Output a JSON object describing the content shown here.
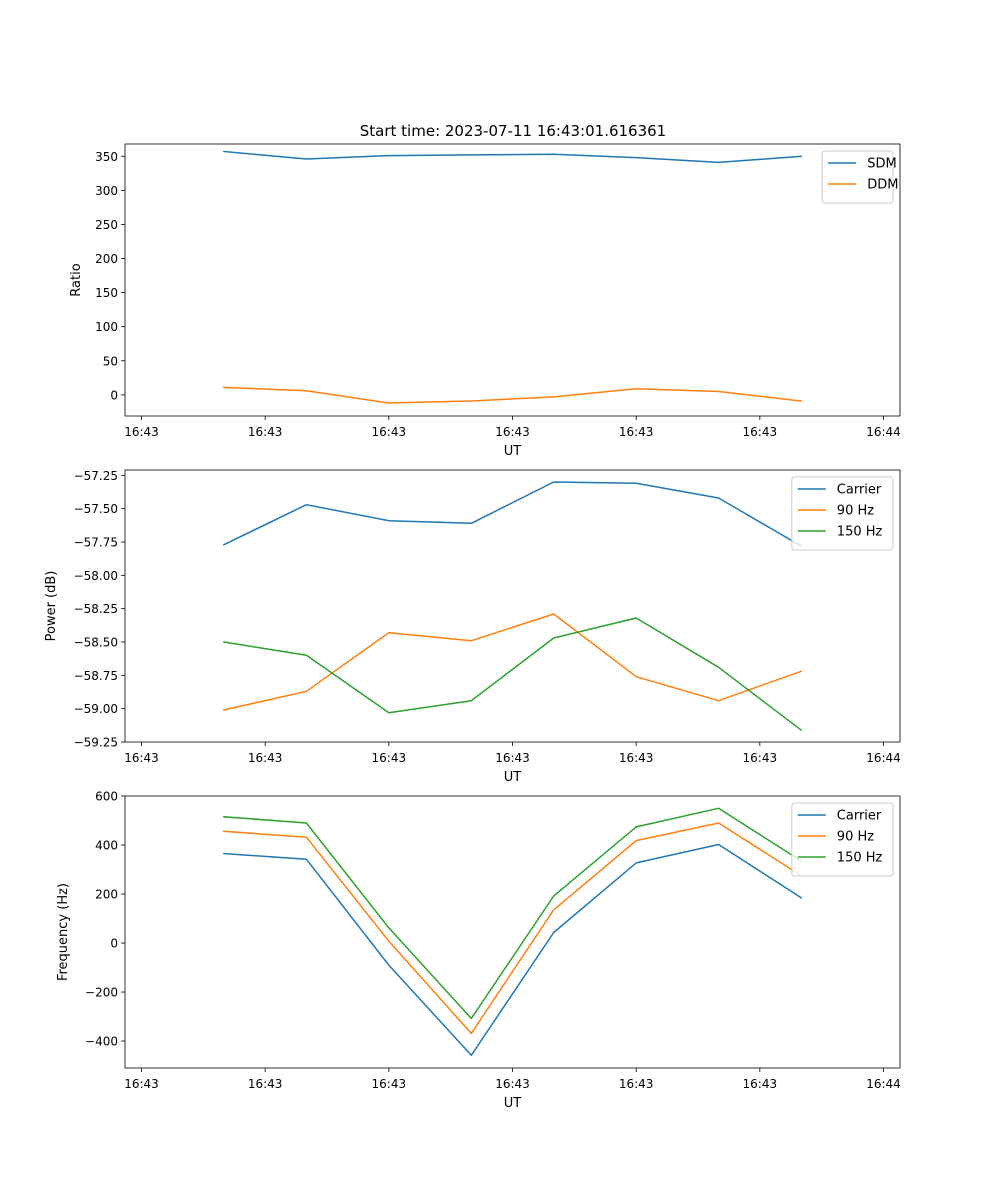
{
  "figure_title": "Start time: 2023-07-11 16:43:01.616361",
  "colors": {
    "c1": "#1f77b4",
    "c2": "#ff7f0e",
    "c3": "#2ca02c"
  },
  "chart_data": [
    {
      "type": "line",
      "title": "Start time: 2023-07-11 16:43:01.616361",
      "xlabel": "UT",
      "ylabel": "Ratio",
      "x_index": [
        1,
        2,
        3,
        4,
        5,
        6,
        7,
        8
      ],
      "xlim": [
        -0.2,
        9.2
      ],
      "x_ticks": [
        0,
        1.5,
        3,
        4.5,
        6,
        7.5,
        9
      ],
      "x_tick_labels": [
        "16:43",
        "16:43",
        "16:43",
        "16:43",
        "16:43",
        "16:43",
        "16:44"
      ],
      "ylim": [
        -31,
        368
      ],
      "y_ticks": [
        0,
        50,
        100,
        150,
        200,
        250,
        300,
        350
      ],
      "y_tick_labels": [
        "0",
        "50",
        "100",
        "150",
        "200",
        "250",
        "300",
        "350"
      ],
      "legend_position": "top-right",
      "series": [
        {
          "name": "SDM",
          "color": "#1f77b4",
          "values": [
            357,
            346,
            351,
            352,
            353,
            348,
            341,
            350
          ]
        },
        {
          "name": "DDM",
          "color": "#ff7f0e",
          "values": [
            11,
            6,
            -12,
            -9,
            -3,
            9,
            5,
            -9
          ]
        }
      ]
    },
    {
      "type": "line",
      "xlabel": "UT",
      "ylabel": "Power (dB)",
      "x_index": [
        1,
        2,
        3,
        4,
        5,
        6,
        7,
        8
      ],
      "xlim": [
        -0.2,
        9.2
      ],
      "x_ticks": [
        0,
        1.5,
        3,
        4.5,
        6,
        7.5,
        9
      ],
      "x_tick_labels": [
        "16:43",
        "16:43",
        "16:43",
        "16:43",
        "16:43",
        "16:43",
        "16:44"
      ],
      "ylim": [
        -59.25,
        -57.21
      ],
      "y_ticks": [
        -59.25,
        -59.0,
        -58.75,
        -58.5,
        -58.25,
        -58.0,
        -57.75,
        -57.5,
        -57.25
      ],
      "y_tick_labels": [
        "−59.25",
        "−59.00",
        "−58.75",
        "−58.50",
        "−58.25",
        "−58.00",
        "−57.75",
        "−57.50",
        "−57.25"
      ],
      "legend_position": "top-right",
      "series": [
        {
          "name": "Carrier",
          "color": "#1f77b4",
          "values": [
            -57.77,
            -57.47,
            -57.59,
            -57.61,
            -57.3,
            -57.31,
            -57.42,
            -57.78
          ]
        },
        {
          "name": "90 Hz",
          "color": "#ff7f0e",
          "values": [
            -59.01,
            -58.87,
            -58.43,
            -58.49,
            -58.29,
            -58.76,
            -58.94,
            -58.72
          ]
        },
        {
          "name": "150 Hz",
          "color": "#2ca02c",
          "values": [
            -58.5,
            -58.6,
            -59.03,
            -58.94,
            -58.47,
            -58.32,
            -58.69,
            -59.16
          ]
        }
      ]
    },
    {
      "type": "line",
      "xlabel": "UT",
      "ylabel": "Frequency (Hz)",
      "x_index": [
        1,
        2,
        3,
        4,
        5,
        6,
        7,
        8
      ],
      "xlim": [
        -0.2,
        9.2
      ],
      "x_ticks": [
        0,
        1.5,
        3,
        4.5,
        6,
        7.5,
        9
      ],
      "x_tick_labels": [
        "16:43",
        "16:43",
        "16:43",
        "16:43",
        "16:43",
        "16:43",
        "16:44"
      ],
      "ylim": [
        -510,
        600
      ],
      "y_ticks": [
        -400,
        -200,
        0,
        200,
        400,
        600
      ],
      "y_tick_labels": [
        "−400",
        "−200",
        "0",
        "200",
        "400",
        "600"
      ],
      "legend_position": "top-right",
      "series": [
        {
          "name": "Carrier",
          "color": "#1f77b4",
          "values": [
            365,
            342,
            -90,
            -458,
            43,
            327,
            402,
            185
          ]
        },
        {
          "name": "90 Hz",
          "color": "#ff7f0e",
          "values": [
            456,
            432,
            8,
            -369,
            135,
            418,
            490,
            275
          ]
        },
        {
          "name": "150 Hz",
          "color": "#2ca02c",
          "values": [
            515,
            490,
            62,
            -308,
            192,
            474,
            550,
            335
          ]
        }
      ]
    }
  ]
}
